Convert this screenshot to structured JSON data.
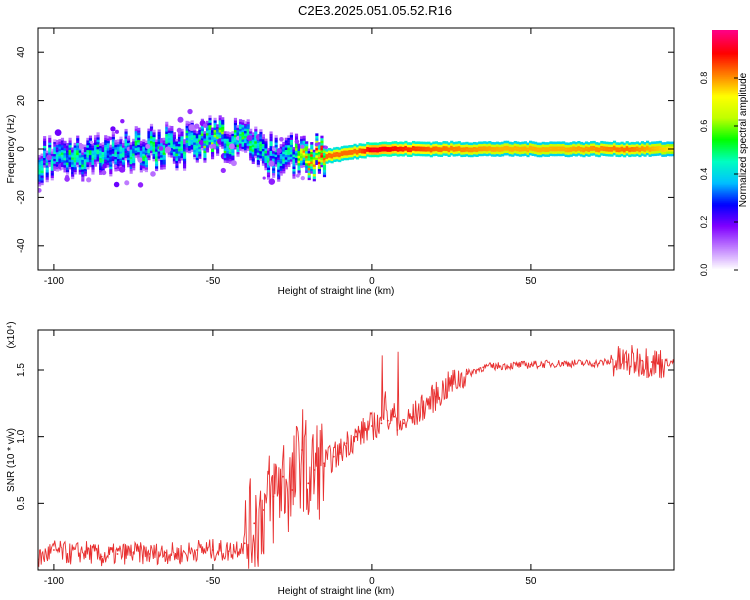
{
  "title": "C2E3.2025.051.05.52.R16",
  "chart_data": [
    {
      "type": "heatmap",
      "xlabel": "Height of straight line (km)",
      "ylabel": "Frequency (Hz)",
      "xlim": [
        -105,
        95
      ],
      "ylim": [
        -50,
        50
      ],
      "x_ticks": [
        -100,
        -50,
        0,
        50
      ],
      "x_tick_labels": [
        "-100",
        "-50",
        "0",
        "50"
      ],
      "y_ticks": [
        -40,
        -20,
        0,
        20,
        40
      ],
      "y_tick_labels": [
        "-40",
        "-20",
        "0",
        "20",
        "40"
      ],
      "colorbar": {
        "label": "Normalized spectral amplitude",
        "range": [
          0,
          1
        ],
        "ticks": [
          0,
          0.2,
          0.4,
          0.6,
          0.8
        ],
        "tick_labels": [
          "0.0",
          "0.2",
          "0.4",
          "0.6",
          "0.8"
        ],
        "colors": [
          "#ffffff",
          "#c080ff",
          "#8000ff",
          "#0000ff",
          "#00c0ff",
          "#00ffc0",
          "#00ff00",
          "#c0ff00",
          "#ffff00",
          "#ff8000",
          "#ff0000",
          "#ff0080"
        ]
      },
      "ridge": {
        "x": [
          -105,
          -100,
          -95,
          -90,
          -85,
          -80,
          -75,
          -70,
          -65,
          -60,
          -55,
          -50,
          -45,
          -40,
          -35,
          -30,
          -25,
          -20,
          -15,
          -10,
          -5,
          0,
          10,
          20,
          40,
          60,
          80,
          95
        ],
        "frequency": [
          -5,
          -4,
          -6,
          -3,
          -2,
          -1,
          0,
          1,
          2,
          1,
          3,
          4,
          3,
          4,
          -2,
          -3,
          -3,
          -3,
          -3,
          -2,
          -1,
          0,
          0,
          0,
          0,
          0,
          0,
          0
        ],
        "amplitude": [
          0.45,
          0.4,
          0.5,
          0.45,
          0.45,
          0.4,
          0.45,
          0.5,
          0.45,
          0.45,
          0.5,
          0.55,
          0.5,
          0.5,
          0.45,
          0.4,
          0.5,
          0.8,
          0.85,
          0.85,
          0.85,
          0.95,
          0.9,
          0.85,
          0.8,
          0.8,
          0.85,
          0.75
        ]
      }
    },
    {
      "type": "line",
      "xlabel": "Height of straight line (km)",
      "ylabel": "SNR (10 * v/v)",
      "multiplier_label": "(x10⁴)",
      "xlim": [
        -105,
        95
      ],
      "ylim": [
        0,
        1.8
      ],
      "x_ticks": [
        -100,
        -50,
        0,
        50
      ],
      "x_tick_labels": [
        "-100",
        "-50",
        "0",
        "50"
      ],
      "y_ticks": [
        0.5,
        1.0,
        1.5
      ],
      "y_tick_labels": [
        "0.5",
        "1.0",
        "1.5"
      ],
      "series_color": "#e83030",
      "x": [
        -105,
        -100,
        -95,
        -90,
        -85,
        -80,
        -75,
        -70,
        -65,
        -60,
        -55,
        -50,
        -45,
        -40,
        -37,
        -34,
        -31,
        -28,
        -25,
        -22,
        -20,
        -18,
        -15,
        -12,
        -10,
        -8,
        -5,
        -2,
        0,
        3,
        5,
        7,
        8,
        10,
        13,
        16,
        20,
        25,
        30,
        35,
        40,
        50,
        60,
        70,
        75,
        80,
        85,
        88,
        90,
        95
      ],
      "y": [
        0.08,
        0.15,
        0.12,
        0.14,
        0.1,
        0.12,
        0.13,
        0.12,
        0.13,
        0.12,
        0.15,
        0.15,
        0.14,
        0.2,
        0.35,
        0.45,
        0.55,
        0.7,
        0.6,
        0.9,
        0.65,
        0.75,
        0.8,
        0.85,
        0.88,
        0.95,
        1.0,
        1.05,
        1.08,
        1.1,
        1.12,
        1.15,
        1.05,
        1.1,
        1.15,
        1.22,
        1.3,
        1.4,
        1.47,
        1.52,
        1.53,
        1.54,
        1.55,
        1.55,
        1.56,
        1.56,
        1.57,
        1.56,
        1.55,
        1.56
      ]
    }
  ]
}
